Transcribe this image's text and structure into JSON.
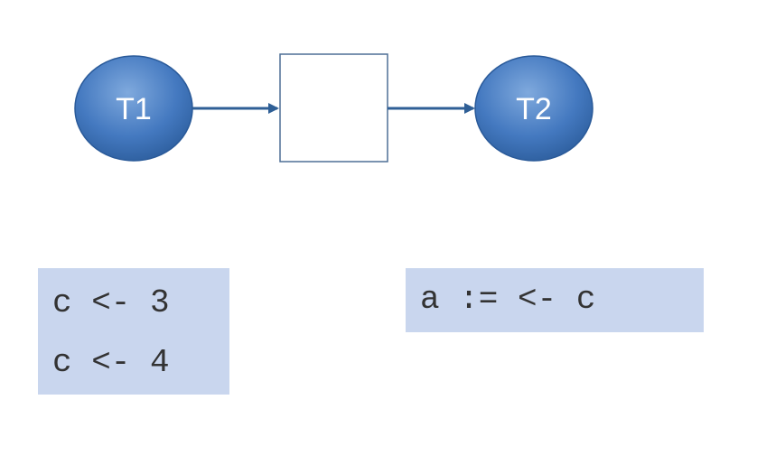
{
  "nodes": {
    "left": {
      "label": "T1"
    },
    "right": {
      "label": "T2"
    }
  },
  "colors": {
    "node_fill": "#3f74bb",
    "node_stroke": "#2a5a99",
    "arrow": "#2f5f96",
    "box_stroke": "#4e6f96",
    "code_background": "#c9d6ee"
  },
  "code_blocks": {
    "t1": {
      "lines": [
        "c <- 3",
        "c <- 4"
      ]
    },
    "t2": {
      "lines": [
        "a := <- c"
      ]
    }
  }
}
